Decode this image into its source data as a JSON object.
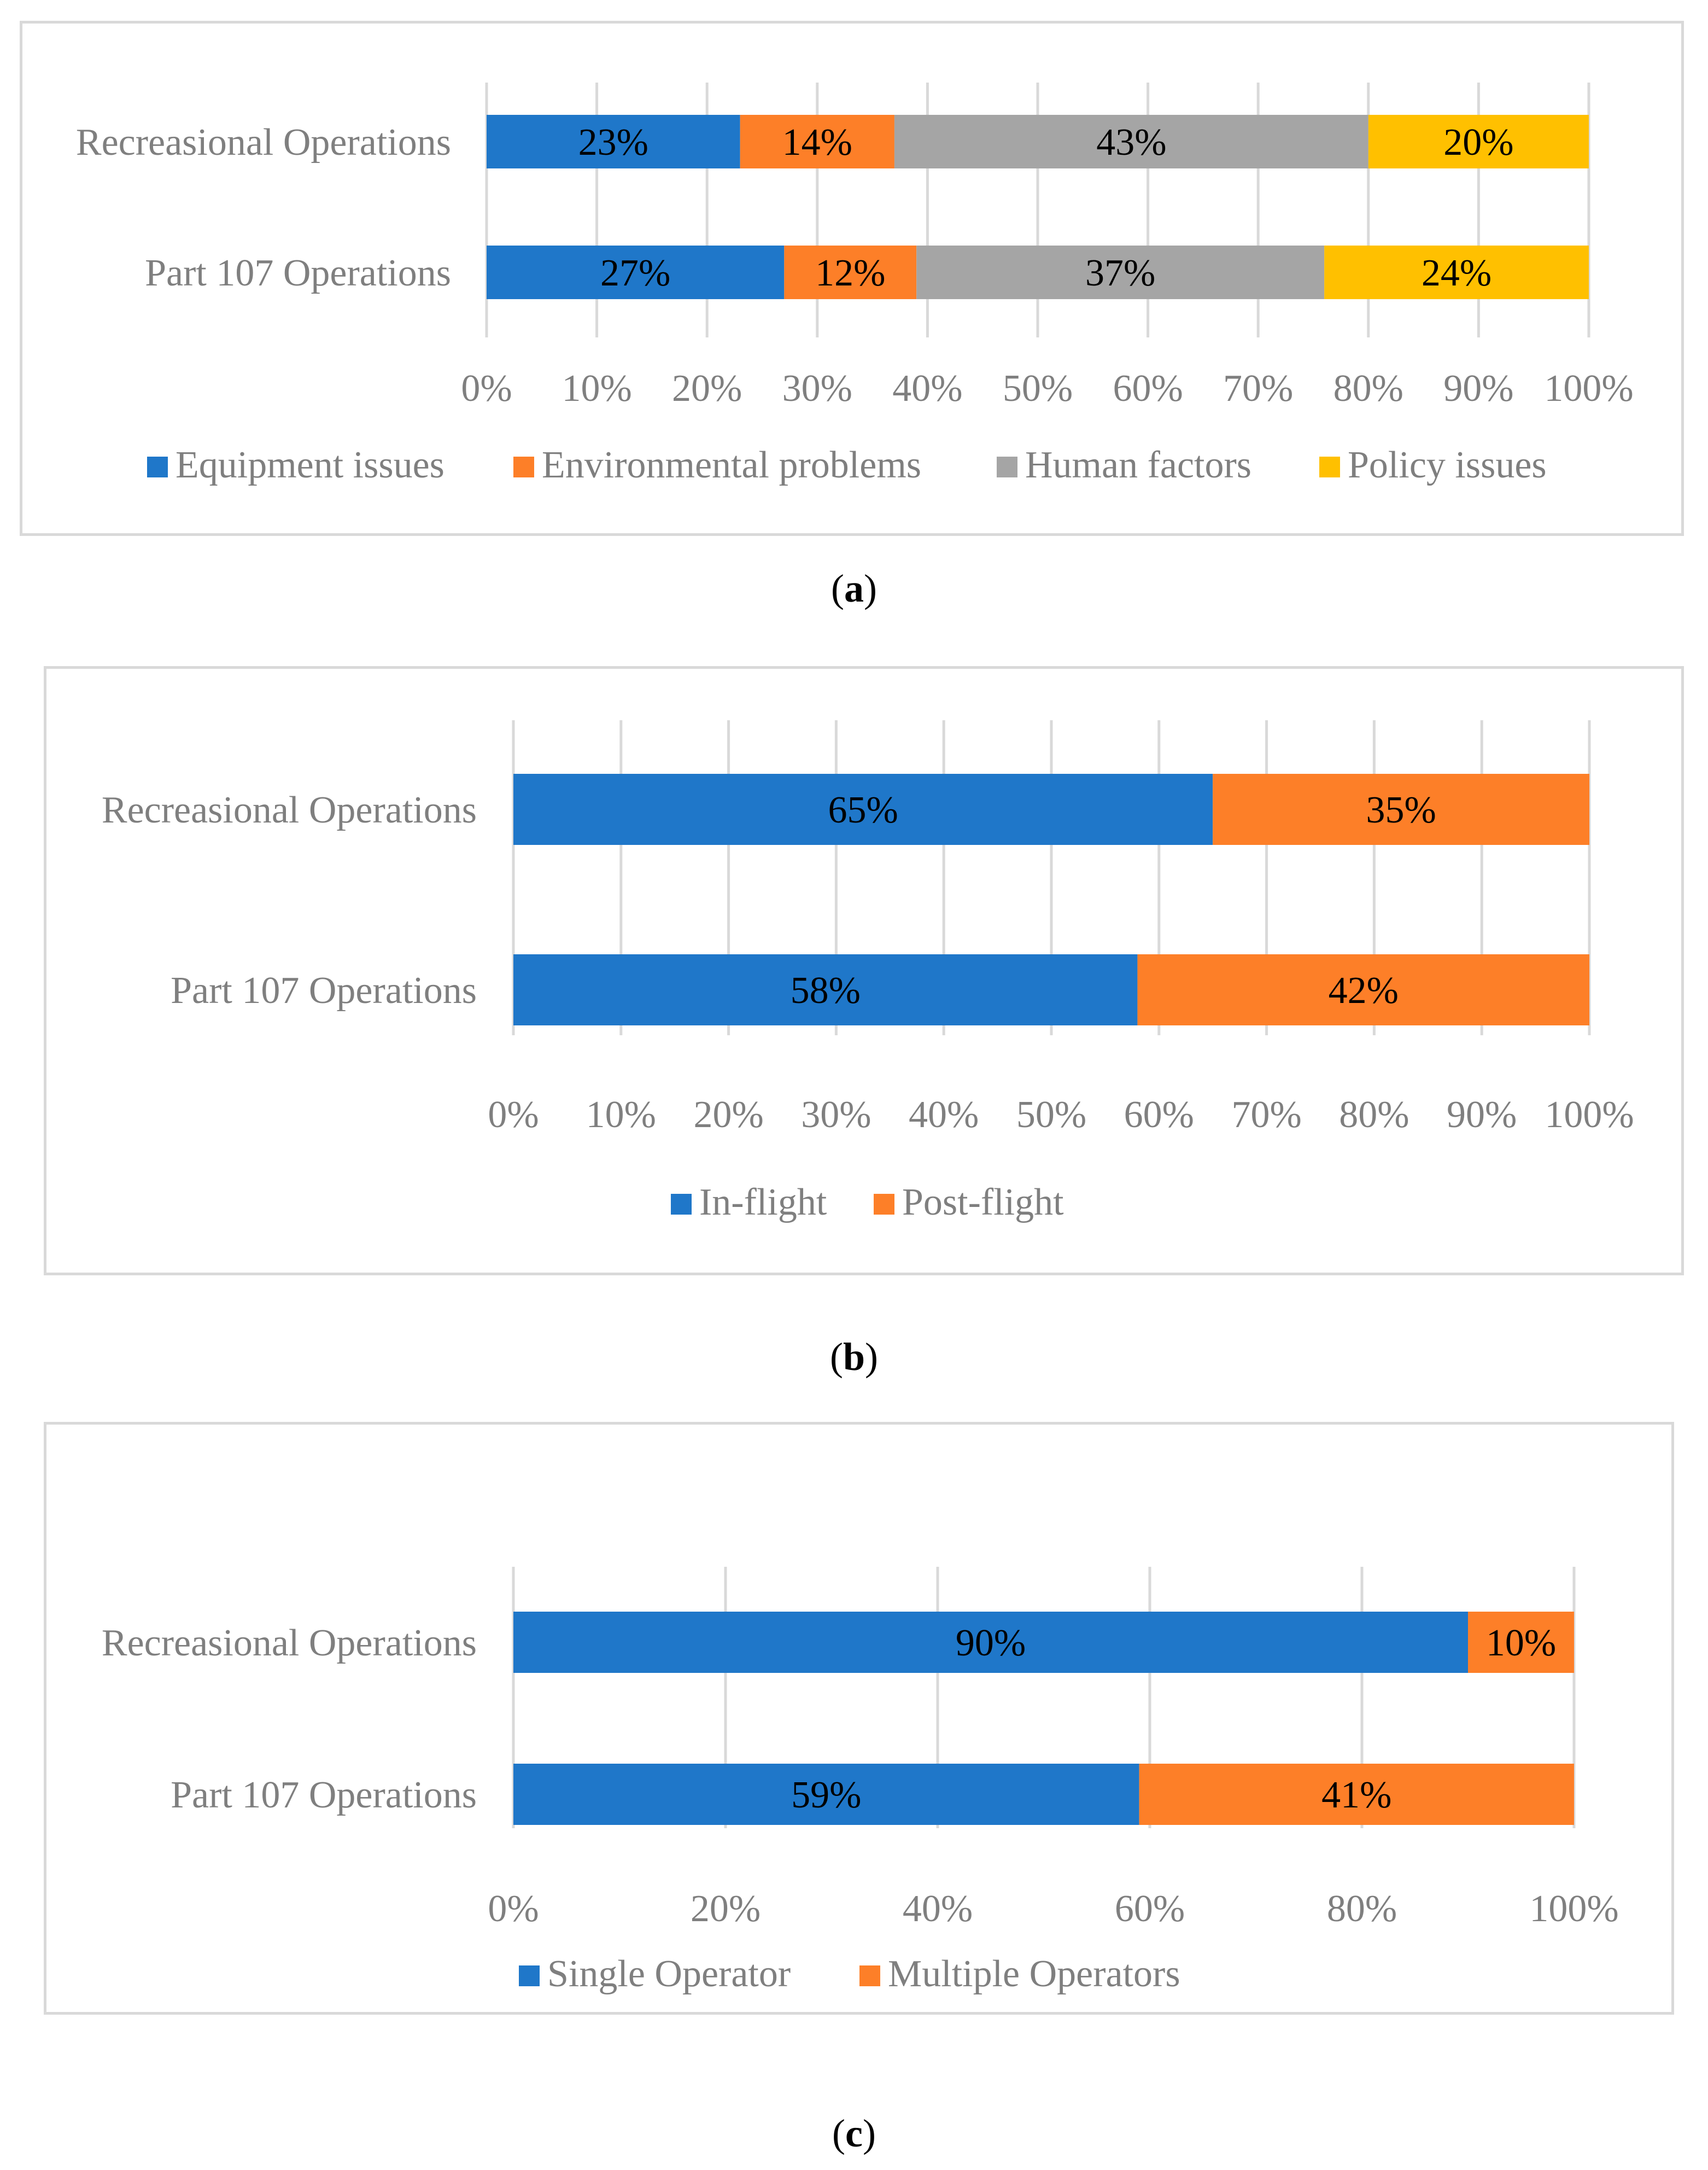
{
  "colors": {
    "blue": "#1f77c9",
    "orange": "#fd7f28",
    "gray": "#a5a5a5",
    "yellow": "#ffc000",
    "grid": "#d9d9d9",
    "label": "#7f7f7f"
  },
  "chart_data": [
    {
      "type": "bar",
      "orientation": "horizontal",
      "stacked": true,
      "caption": "a",
      "categories": [
        "Recreasional Operations",
        "Part 107 Operations"
      ],
      "series": [
        {
          "name": "Equipment issues",
          "color": "#1f77c9",
          "values": [
            23,
            27
          ],
          "labels": [
            "23%",
            "27%"
          ]
        },
        {
          "name": "Environmental problems",
          "color": "#fd7f28",
          "values": [
            14,
            12
          ],
          "labels": [
            "14%",
            "12%"
          ]
        },
        {
          "name": "Human factors",
          "color": "#a5a5a5",
          "values": [
            43,
            37
          ],
          "labels": [
            "43%",
            "37%"
          ]
        },
        {
          "name": "Policy issues",
          "color": "#ffc000",
          "values": [
            20,
            24
          ],
          "labels": [
            "20%",
            "24%"
          ]
        }
      ],
      "xlim": [
        0,
        100
      ],
      "xticks": [
        0,
        10,
        20,
        30,
        40,
        50,
        60,
        70,
        80,
        90,
        100
      ],
      "xtick_labels": [
        "0%",
        "10%",
        "20%",
        "30%",
        "40%",
        "50%",
        "60%",
        "70%",
        "80%",
        "90%",
        "100%"
      ],
      "grid": true,
      "legend_position": "bottom"
    },
    {
      "type": "bar",
      "orientation": "horizontal",
      "stacked": true,
      "caption": "b",
      "categories": [
        "Recreasional Operations",
        "Part 107 Operations"
      ],
      "series": [
        {
          "name": "In-flight",
          "color": "#1f77c9",
          "values": [
            65,
            58
          ],
          "labels": [
            "65%",
            "58%"
          ]
        },
        {
          "name": "Post-flight",
          "color": "#fd7f28",
          "values": [
            35,
            42
          ],
          "labels": [
            "35%",
            "42%"
          ]
        }
      ],
      "xlim": [
        0,
        100
      ],
      "xticks": [
        0,
        10,
        20,
        30,
        40,
        50,
        60,
        70,
        80,
        90,
        100
      ],
      "xtick_labels": [
        "0%",
        "10%",
        "20%",
        "30%",
        "40%",
        "50%",
        "60%",
        "70%",
        "80%",
        "90%",
        "100%"
      ],
      "grid": true,
      "legend_position": "bottom"
    },
    {
      "type": "bar",
      "orientation": "horizontal",
      "stacked": true,
      "caption": "c",
      "categories": [
        "Recreasional Operations",
        "Part 107 Operations"
      ],
      "series": [
        {
          "name": "Single Operator",
          "color": "#1f77c9",
          "values": [
            90,
            59
          ],
          "labels": [
            "90%",
            "59%"
          ]
        },
        {
          "name": "Multiple Operators",
          "color": "#fd7f28",
          "values": [
            10,
            41
          ],
          "labels": [
            "10%",
            "41%"
          ]
        }
      ],
      "xlim": [
        0,
        100
      ],
      "xticks": [
        0,
        20,
        40,
        60,
        80,
        100
      ],
      "xtick_labels": [
        "0%",
        "20%",
        "40%",
        "60%",
        "80%",
        "100%"
      ],
      "grid": true,
      "legend_position": "bottom"
    }
  ]
}
